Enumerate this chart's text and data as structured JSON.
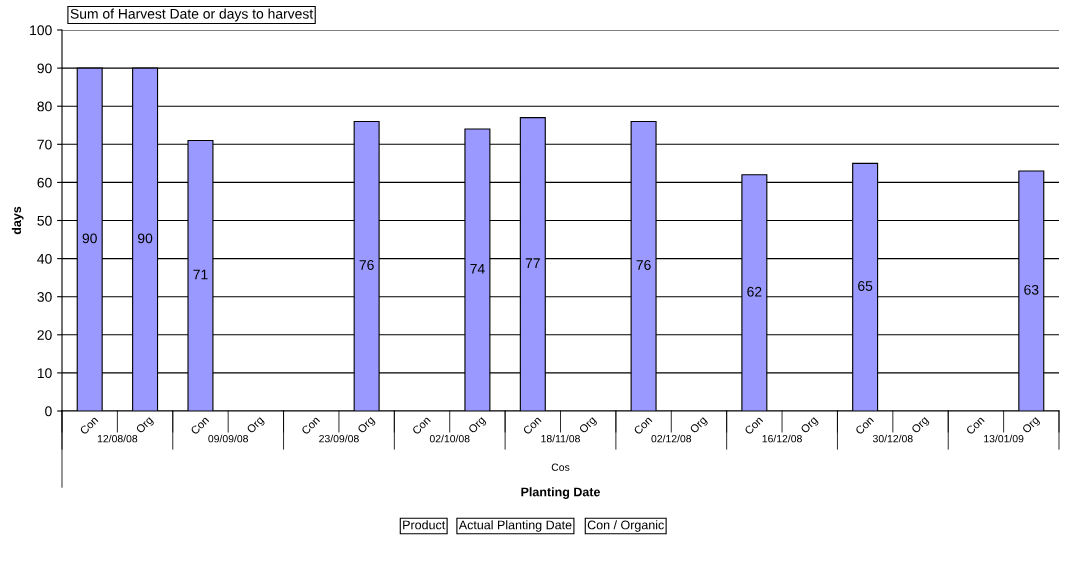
{
  "chart_data": {
    "type": "bar",
    "title": "Sum of Harvest Date or days to harvest",
    "xlabel": "Planting Date",
    "ylabel": "days",
    "categories": [
      "Con",
      "Org",
      "Con",
      "Org",
      "Con",
      "Org",
      "Con",
      "Org",
      "Con",
      "Org",
      "Con",
      "Org",
      "Con",
      "Org",
      "Con",
      "Org",
      "Con",
      "Org"
    ],
    "values": [
      90,
      90,
      71,
      null,
      null,
      76,
      null,
      74,
      77,
      null,
      76,
      null,
      62,
      null,
      65,
      null,
      null,
      63
    ],
    "color": "#9999ff",
    "ylim": [
      0,
      100
    ],
    "yticks": [
      0,
      10,
      20,
      30,
      40,
      50,
      60,
      70,
      80,
      90,
      100
    ],
    "grid": "y",
    "data_labels": true,
    "annotations": [
      "12/08/08",
      "09/09/08",
      "23/09/08",
      "02/10/08",
      "18/11/08",
      "02/12/08",
      "16/12/08",
      "30/12/08",
      "13/01/09",
      "Cos",
      "Product",
      "Actual Planting Date",
      "Con / Organic"
    ]
  }
}
